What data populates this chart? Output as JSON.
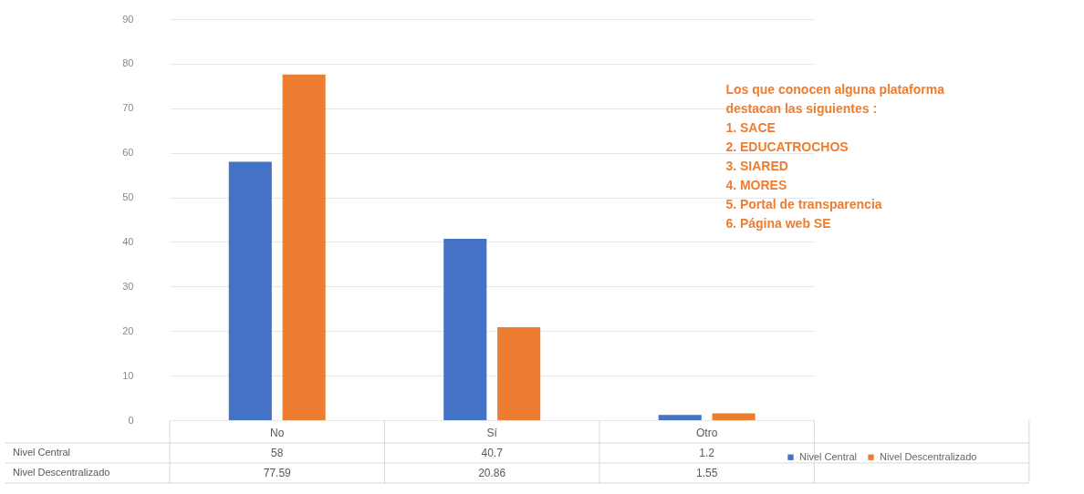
{
  "chart_data": {
    "type": "bar",
    "categories": [
      "No",
      "Sí",
      "Otro"
    ],
    "series": [
      {
        "name": "Nivel Central",
        "color": "#4472c4",
        "values": [
          58,
          40.7,
          1.2
        ]
      },
      {
        "name": "Nivel Descentralizado",
        "color": "#ed7d31",
        "values": [
          77.59,
          20.86,
          1.55
        ]
      }
    ],
    "ylim": [
      0,
      90
    ],
    "yticks": [
      0,
      10,
      20,
      30,
      40,
      50,
      60,
      70,
      80,
      90
    ],
    "grid": "y",
    "legend": "bottom right",
    "data_labels": true,
    "annotations": [
      "Los que conocen alguna plataforma",
      "destacan las siguientes :",
      "1.    SACE",
      "2.    EDUCATROCHOS",
      "3.    SIARED",
      "4.    MORES",
      "5.    Portal de transparencia",
      "6.    Página web SE"
    ]
  }
}
